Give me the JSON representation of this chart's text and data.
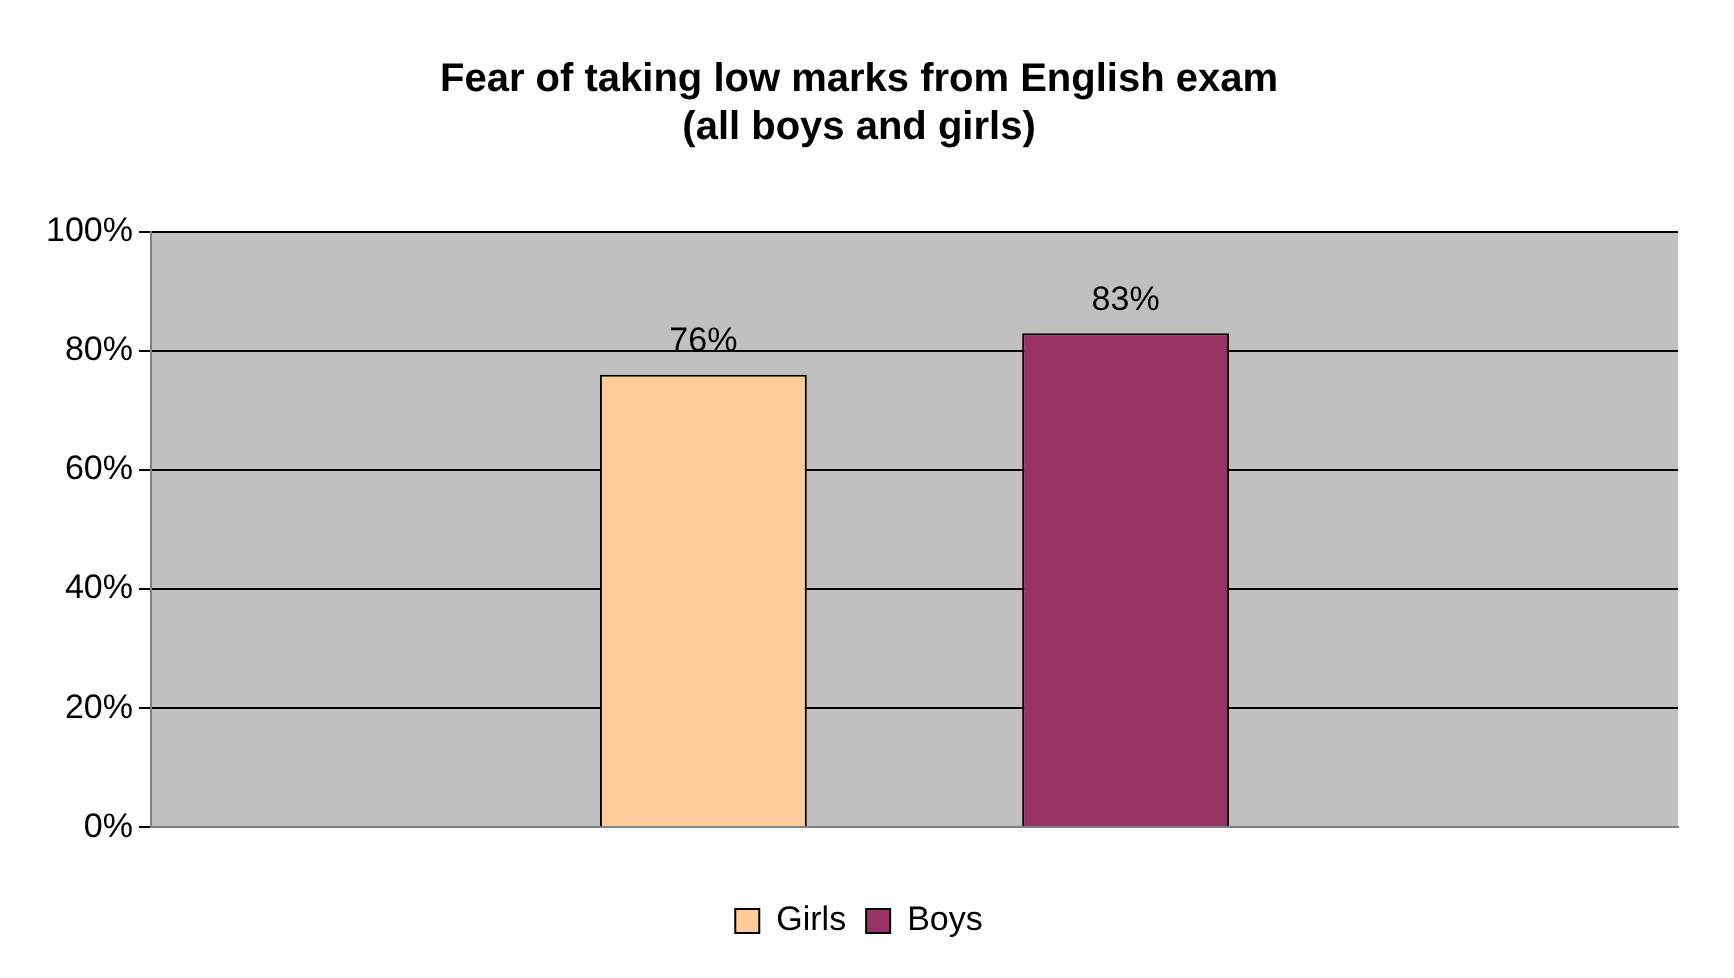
{
  "chart_data": {
    "type": "bar",
    "title": "Fear of taking low marks from English exam\n(all boys and girls)",
    "categories": [
      null
    ],
    "series": [
      {
        "name": "Girls",
        "color": "#ffcc99",
        "values": [
          76
        ],
        "value_labels": [
          "76%"
        ]
      },
      {
        "name": "Boys",
        "color": "#993366",
        "values": [
          83
        ],
        "value_labels": [
          "83%"
        ]
      }
    ],
    "ylim": [
      0,
      100
    ],
    "yticks": [
      {
        "value": 0,
        "label": "0%"
      },
      {
        "value": 20,
        "label": "20%"
      },
      {
        "value": 40,
        "label": "40%"
      },
      {
        "value": 60,
        "label": "60%"
      },
      {
        "value": 80,
        "label": "80%"
      },
      {
        "value": 100,
        "label": "100%"
      }
    ],
    "grid": "y",
    "legend": "bottom"
  }
}
